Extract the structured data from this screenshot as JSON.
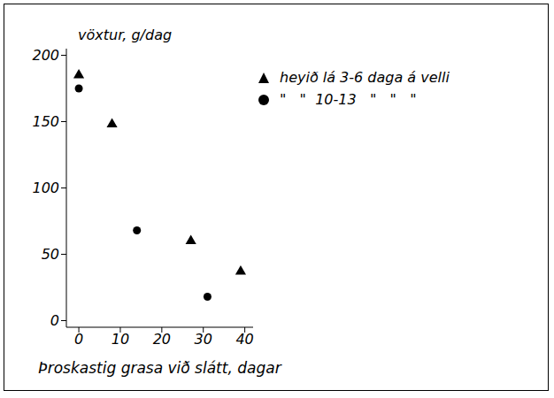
{
  "chart_data": {
    "type": "scatter",
    "y_label": "vöxtur, g/dag",
    "x_label": "Þroskastig grasa við slátt, dagar",
    "xlim": [
      -3,
      42
    ],
    "xticks": [
      0,
      10,
      20,
      30,
      40
    ],
    "ylim": [
      -5,
      205
    ],
    "yticks": [
      0,
      50,
      100,
      150,
      200
    ],
    "grid": false,
    "legend": "top right",
    "series": [
      {
        "name": "heyið lá 3-6 daga á velli",
        "color": "#000000",
        "marker": "triangle",
        "x": [
          0,
          8,
          27,
          39
        ],
        "values": [
          185,
          148,
          60,
          37
        ]
      },
      {
        "name": "\"   \"  10-13   \"   \"   \"",
        "color": "#000000",
        "marker": "circle",
        "x": [
          0,
          14,
          31
        ],
        "values": [
          175,
          68,
          18
        ]
      }
    ]
  }
}
